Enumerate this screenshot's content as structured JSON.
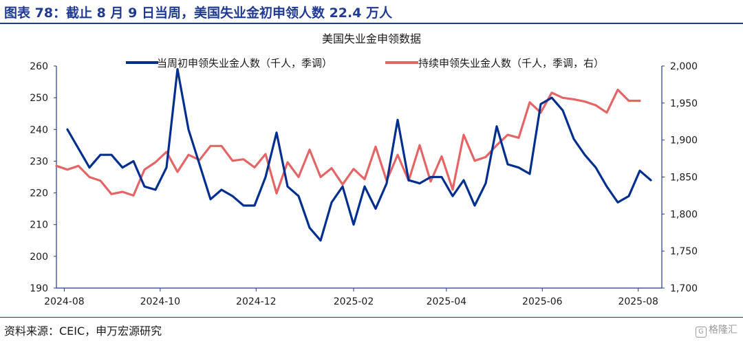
{
  "header": {
    "title": "图表 78：截止 8 月 9 日当周，美国失业金初申领人数 22.4 万人"
  },
  "footer": {
    "source": "资料来源：CEIC，申万宏源研究",
    "watermark": "格隆汇"
  },
  "colors": {
    "accent": "#1f3a93",
    "series_initial": "#002f8f",
    "series_continuing": "#e56566"
  },
  "chart_data": {
    "type": "line",
    "title": "美国失业金申领数据",
    "legend_placement": "top",
    "grid": false,
    "x_ticks": [
      "2024-08",
      "2024-10",
      "2024-12",
      "2025-02",
      "2025-04",
      "2025-06",
      "2025-08"
    ],
    "y_left": {
      "ylim": [
        190,
        260
      ],
      "ticks": [
        "190",
        "200",
        "210",
        "220",
        "230",
        "240",
        "250",
        "260"
      ]
    },
    "y_right": {
      "ylim": [
        1700,
        2000
      ],
      "ticks": [
        "1,700",
        "1,750",
        "1,800",
        "1,850",
        "1,900",
        "1,950",
        "2,000"
      ]
    },
    "series": [
      {
        "name": "当周初申领失业金人数（千人，季调）",
        "axis": "left",
        "x": [
          "2024-08-03",
          "2024-08-10",
          "2024-08-17",
          "2024-08-24",
          "2024-08-31",
          "2024-09-07",
          "2024-09-14",
          "2024-09-21",
          "2024-09-28",
          "2024-10-05",
          "2024-10-12",
          "2024-10-19",
          "2024-10-26",
          "2024-11-02",
          "2024-11-09",
          "2024-11-16",
          "2024-11-23",
          "2024-11-30",
          "2024-12-07",
          "2024-12-14",
          "2024-12-21",
          "2024-12-28",
          "2025-01-04",
          "2025-01-11",
          "2025-01-18",
          "2025-01-25",
          "2025-02-01",
          "2025-02-08",
          "2025-02-15",
          "2025-02-22",
          "2025-03-01",
          "2025-03-08",
          "2025-03-15",
          "2025-03-22",
          "2025-03-29",
          "2025-04-05",
          "2025-04-12",
          "2025-04-19",
          "2025-04-26",
          "2025-05-03",
          "2025-05-10",
          "2025-05-17",
          "2025-05-24",
          "2025-05-31",
          "2025-06-07",
          "2025-06-14",
          "2025-06-21",
          "2025-06-28",
          "2025-07-05",
          "2025-07-12",
          "2025-07-19",
          "2025-07-26",
          "2025-08-02",
          "2025-08-09"
        ],
        "values": [
          240,
          234,
          228,
          232,
          232,
          228,
          230,
          222,
          221,
          228,
          259,
          240,
          229,
          218,
          221,
          219,
          216,
          216,
          225,
          239,
          222,
          219,
          209,
          205,
          217,
          222,
          210,
          222,
          215,
          223,
          243,
          224,
          223,
          225,
          225,
          219,
          224,
          216,
          223,
          241,
          229,
          228,
          226,
          248,
          250,
          246,
          237,
          232,
          228,
          222,
          217,
          219,
          227,
          224
        ]
      },
      {
        "name": "持续申领失业金人数（千人，季调，右）",
        "axis": "right",
        "x": [
          "2024-07-27",
          "2024-08-03",
          "2024-08-10",
          "2024-08-17",
          "2024-08-24",
          "2024-08-31",
          "2024-09-07",
          "2024-09-14",
          "2024-09-21",
          "2024-09-28",
          "2024-10-05",
          "2024-10-12",
          "2024-10-19",
          "2024-10-26",
          "2024-11-02",
          "2024-11-09",
          "2024-11-16",
          "2024-11-23",
          "2024-11-30",
          "2024-12-07",
          "2024-12-14",
          "2024-12-21",
          "2024-12-28",
          "2025-01-04",
          "2025-01-11",
          "2025-01-18",
          "2025-01-25",
          "2025-02-01",
          "2025-02-08",
          "2025-02-15",
          "2025-02-22",
          "2025-03-01",
          "2025-03-08",
          "2025-03-15",
          "2025-03-22",
          "2025-03-29",
          "2025-04-05",
          "2025-04-12",
          "2025-04-19",
          "2025-04-26",
          "2025-05-03",
          "2025-05-10",
          "2025-05-17",
          "2025-05-24",
          "2025-05-31",
          "2025-06-07",
          "2025-06-14",
          "2025-06-21",
          "2025-06-28",
          "2025-07-05",
          "2025-07-12",
          "2025-07-19",
          "2025-07-26",
          "2025-08-02"
        ],
        "values": [
          1865,
          1860,
          1865,
          1850,
          1845,
          1827,
          1830,
          1825,
          1860,
          1870,
          1884,
          1857,
          1880,
          1873,
          1892,
          1892,
          1872,
          1874,
          1863,
          1881,
          1828,
          1870,
          1850,
          1887,
          1850,
          1862,
          1840,
          1861,
          1847,
          1891,
          1845,
          1880,
          1845,
          1893,
          1844,
          1878,
          1833,
          1907,
          1872,
          1877,
          1893,
          1907,
          1903,
          1951,
          1937,
          1964,
          1957,
          1955,
          1952,
          1947,
          1937,
          1968,
          1953,
          1953
        ]
      }
    ]
  }
}
